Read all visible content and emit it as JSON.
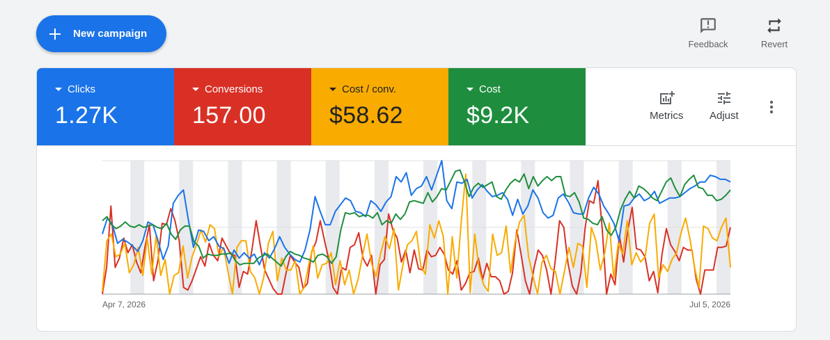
{
  "toolbar": {
    "new_campaign_label": "New campaign",
    "feedback_label": "Feedback",
    "revert_label": "Revert"
  },
  "colors": {
    "clicks": "#1a73e8",
    "conversions": "#d93025",
    "cost_per_conv": "#f9ab00",
    "cost": "#1e8e3e"
  },
  "metrics": [
    {
      "name": "Clicks",
      "value": "1.27K",
      "color": "#1a73e8"
    },
    {
      "name": "Conversions",
      "value": "157.00",
      "color": "#d93025"
    },
    {
      "name": "Cost / conv.",
      "value": "$58.62",
      "color": "#f9ab00"
    },
    {
      "name": "Cost",
      "value": "$9.2K",
      "color": "#1e8e3e"
    }
  ],
  "actions": {
    "metrics_label": "Metrics",
    "adjust_label": "Adjust"
  },
  "icons": [
    "add-icon",
    "feedback-icon",
    "revert-icon",
    "metrics-icon",
    "adjust-icon",
    "more-vert-icon",
    "caret-down-icon"
  ],
  "chart_data": {
    "type": "line",
    "x_start_label": "Apr 7, 2026",
    "x_end_label": "Jul 5, 2026",
    "days": 90,
    "ylim": [
      0,
      100
    ],
    "weekend_bands": true,
    "series": [
      {
        "name": "Clicks",
        "color": "#1a73e8",
        "values": [
          45,
          57,
          52,
          38,
          41,
          39,
          36,
          32,
          40,
          54,
          52,
          40,
          26,
          36,
          68,
          74,
          78,
          55,
          35,
          48,
          47,
          40,
          43,
          36,
          34,
          23,
          33,
          27,
          31,
          27,
          30,
          22,
          31,
          27,
          34,
          43,
          35,
          30,
          26,
          24,
          33,
          48,
          73,
          62,
          52,
          52,
          62,
          67,
          72,
          70,
          62,
          61,
          58,
          70,
          67,
          62,
          69,
          73,
          88,
          84,
          91,
          74,
          79,
          81,
          88,
          78,
          89,
          100,
          70,
          64,
          84,
          83,
          86,
          72,
          78,
          82,
          77,
          73,
          74,
          76,
          71,
          59,
          71,
          60,
          66,
          78,
          72,
          61,
          57,
          59,
          72,
          75,
          69,
          61,
          60,
          60,
          72,
          80,
          75,
          66,
          60,
          53,
          40,
          66,
          67,
          72,
          75,
          70,
          72,
          77,
          68,
          70,
          72,
          72,
          73,
          76,
          79,
          81,
          84,
          84,
          89,
          88,
          86,
          86,
          84
        ]
      },
      {
        "name": "Conversions",
        "color": "#d93025",
        "values": [
          0,
          20,
          66,
          20,
          27,
          42,
          31,
          37,
          24,
          16,
          36,
          52,
          10,
          25,
          53,
          52,
          64,
          55,
          40,
          5,
          3,
          10,
          19,
          28,
          21,
          38,
          29,
          25,
          42,
          36,
          30,
          29,
          5,
          17,
          15,
          33,
          55,
          36,
          18,
          11,
          4,
          0,
          0,
          16,
          29,
          24,
          20,
          4,
          8,
          32,
          39,
          55,
          40,
          26,
          5,
          0,
          20,
          18,
          35,
          37,
          46,
          27,
          21,
          29,
          0,
          22,
          26,
          60,
          48,
          42,
          24,
          33,
          16,
          33,
          19,
          18,
          33,
          28,
          29,
          35,
          30,
          18,
          15,
          25,
          3,
          8,
          16,
          17,
          27,
          11,
          23,
          13,
          13,
          10,
          0,
          2,
          16,
          48,
          30,
          10,
          0,
          19,
          33,
          29,
          18,
          0,
          25,
          55,
          50,
          23,
          6,
          0,
          16,
          50,
          70,
          68,
          85,
          49,
          0,
          15,
          7,
          44,
          24,
          48,
          65,
          34,
          33,
          28,
          10,
          17,
          1,
          30,
          49,
          37,
          32,
          25,
          35,
          33,
          33,
          11,
          0,
          18,
          18,
          18,
          35,
          35,
          36,
          50
        ]
      },
      {
        "name": "Cost / conv.",
        "color": "#f9ab00",
        "values": [
          2,
          40,
          45,
          28,
          30,
          38,
          16,
          22,
          35,
          14,
          42,
          15,
          44,
          14,
          26,
          0,
          14,
          16,
          36,
          12,
          28,
          37,
          48,
          39,
          52,
          49,
          28,
          35,
          17,
          0,
          35,
          40,
          40,
          17,
          12,
          0,
          13,
          38,
          47,
          10,
          27,
          18,
          18,
          25,
          0,
          5,
          22,
          36,
          12,
          22,
          23,
          31,
          7,
          25,
          7,
          18,
          0,
          11,
          29,
          45,
          23,
          13,
          30,
          43,
          34,
          49,
          3,
          22,
          37,
          40,
          47,
          21,
          15,
          52,
          42,
          55,
          43,
          0,
          43,
          12,
          54,
          90,
          1,
          45,
          18,
          7,
          2,
          45,
          29,
          31,
          51,
          16,
          39,
          54,
          59,
          28,
          13,
          0,
          24,
          29,
          19,
          17,
          0,
          17,
          35,
          20,
          38,
          36,
          5,
          50,
          40,
          18,
          31,
          53,
          12,
          38,
          30,
          55,
          22,
          31,
          24,
          28,
          53,
          60,
          12,
          22,
          17,
          26,
          31,
          46,
          57,
          41,
          20,
          5,
          51,
          49,
          42,
          40,
          50,
          57,
          20
        ]
      },
      {
        "name": "Cost",
        "color": "#1e8e3e",
        "values": [
          55,
          58,
          52,
          49,
          51,
          54,
          51,
          50,
          52,
          50,
          51,
          52,
          50,
          49,
          53,
          45,
          41,
          48,
          51,
          51,
          39,
          36,
          27,
          30,
          29,
          29,
          30,
          30,
          31,
          25,
          22,
          23,
          23,
          23,
          27,
          29,
          30,
          27,
          24,
          21,
          28,
          32,
          30,
          29,
          27,
          26,
          24,
          29,
          30,
          28,
          23,
          28,
          48,
          61,
          60,
          61,
          58,
          59,
          59,
          57,
          61,
          52,
          55,
          53,
          60,
          56,
          60,
          69,
          70,
          69,
          68,
          76,
          69,
          73,
          79,
          78,
          85,
          92,
          93,
          84,
          73,
          80,
          83,
          80,
          82,
          84,
          73,
          71,
          78,
          83,
          86,
          84,
          90,
          79,
          88,
          81,
          85,
          88,
          85,
          88,
          88,
          74,
          73,
          76,
          69,
          57,
          56,
          53,
          52,
          58,
          48,
          44,
          50,
          63,
          71,
          77,
          72,
          81,
          79,
          76,
          72,
          70,
          77,
          84,
          87,
          79,
          73,
          82,
          86,
          89,
          80,
          79,
          74,
          74,
          70,
          71,
          74,
          78
        ]
      }
    ]
  }
}
